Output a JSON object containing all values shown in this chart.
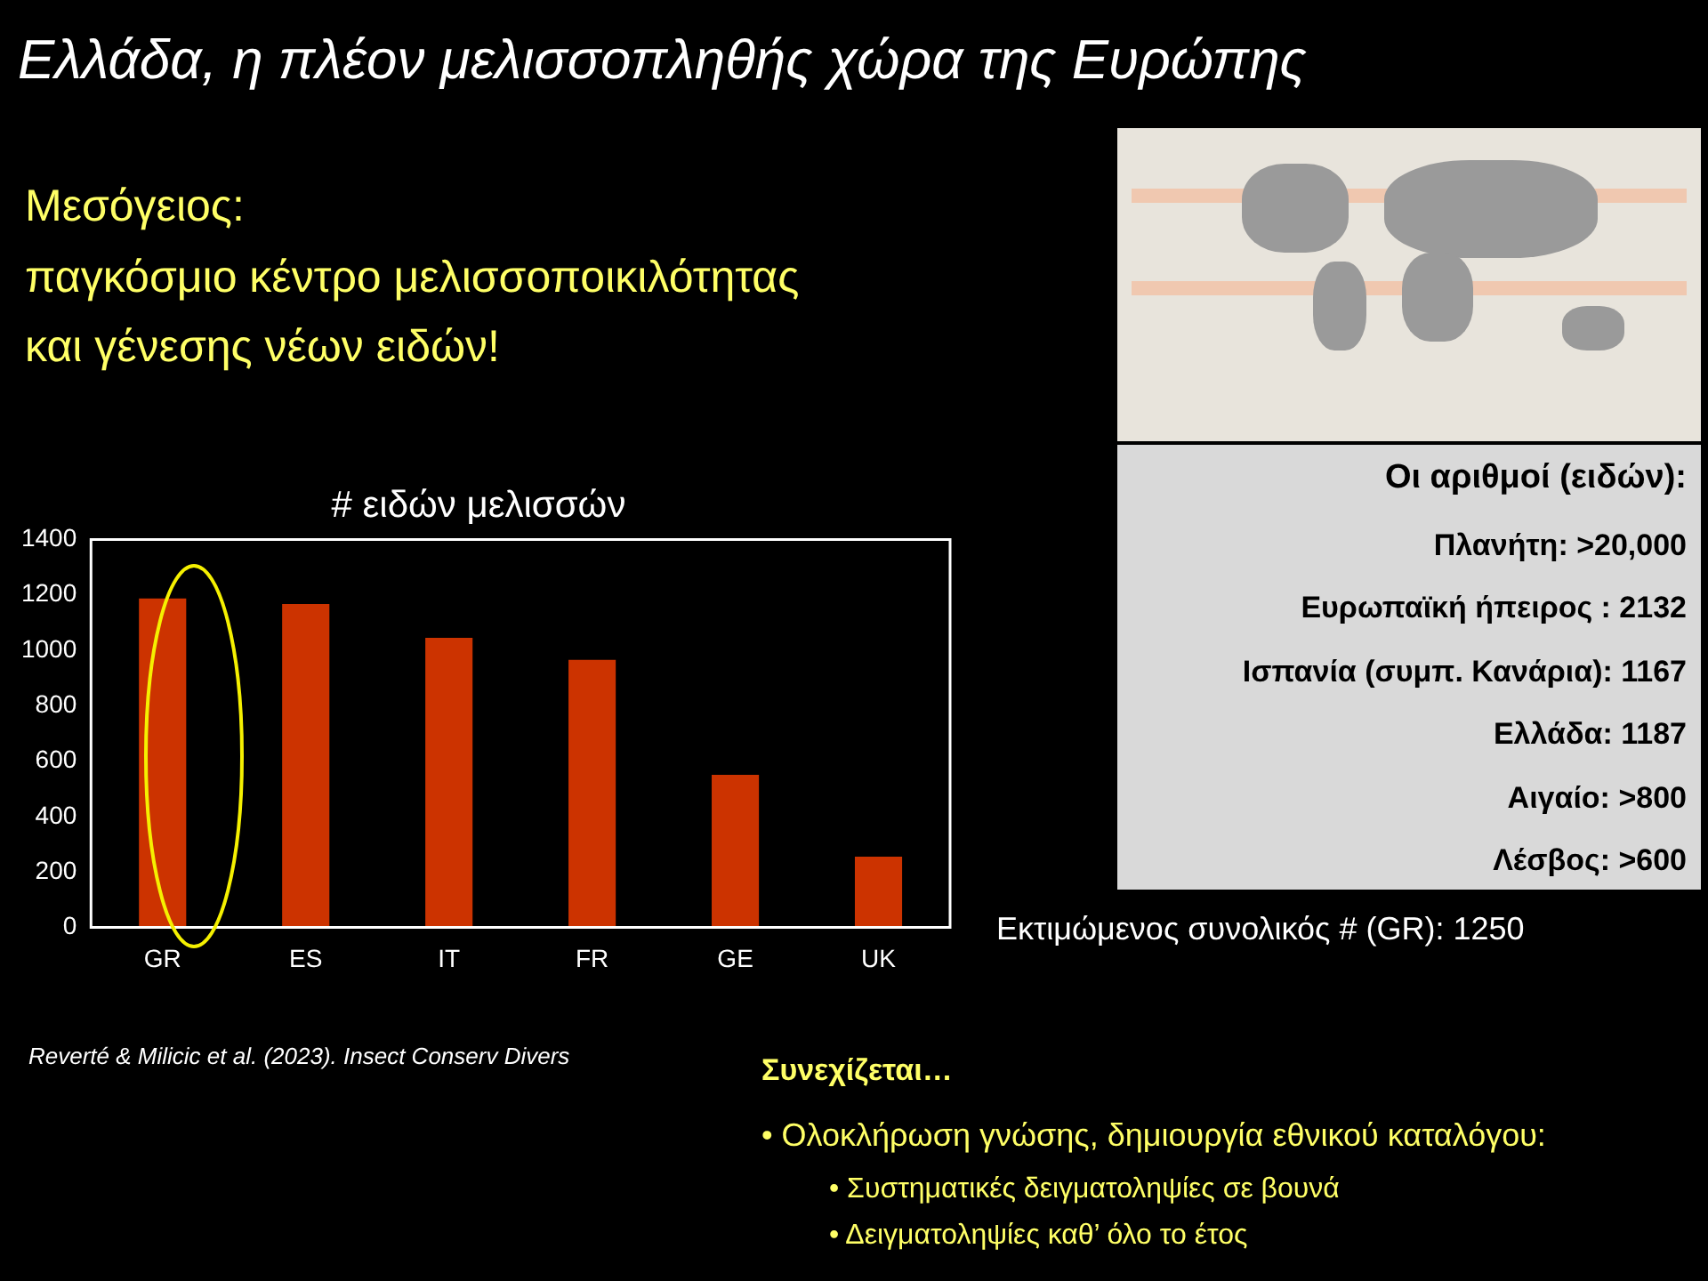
{
  "chart_data": {
    "type": "bar",
    "title": "# ειδών μελισσών",
    "categories": [
      "GR",
      "ES",
      "IT",
      "FR",
      "GE",
      "UK"
    ],
    "values": [
      1187,
      1167,
      1045,
      965,
      550,
      255
    ],
    "color": "#cc3300",
    "ylim": [
      0,
      1400
    ],
    "yticks": [
      0,
      200,
      400,
      600,
      800,
      1000,
      1200,
      1400
    ],
    "grid": false,
    "annotations": [
      "Ελλάδα, η πλέον μελισσοπληθής χώρα της Ευρώπης",
      "Μεσόγειος:",
      "παγκόσμιο κέντρο μελισσοποικιλότητας",
      "και γένεσης νέων ειδών!",
      "Οι αριθμοί (ειδών):",
      "Πλανήτη: >20,000",
      "Ευρωπαϊκή ήπειρος : 2132",
      "Ισπανία (συμπ. Κανάρια): 1167",
      "Ελλάδα: 1187",
      "Αιγαίο: >800",
      "Λέσβος: >600",
      "Εκτιμώμενος συνολικός # (GR): 1250",
      "Reverté & Milicic et al. (2023).  Insect Conserv Divers",
      "Συνεχίζεται…",
      "• Ολοκλήρωση γνώσης, δημιουργία εθνικού καταλόγου:",
      "• Συστηματικές δειγματοληψίες σε βουνά",
      "• Δειγματοληψίες καθ’ όλο το έτος"
    ]
  }
}
